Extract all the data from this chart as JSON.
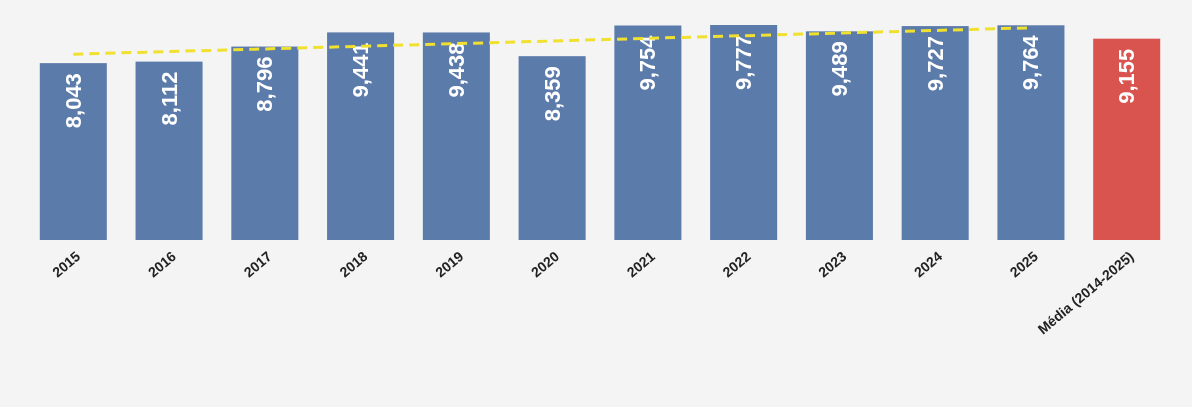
{
  "chart_data": {
    "type": "bar",
    "categories": [
      "2015",
      "2016",
      "2017",
      "2018",
      "2019",
      "2020",
      "2021",
      "2022",
      "2023",
      "2024",
      "2025",
      "Média (2014-2025)"
    ],
    "values": [
      8043,
      8112,
      8796,
      9441,
      9438,
      8359,
      9754,
      9777,
      9489,
      9727,
      9764,
      9155
    ],
    "value_labels": [
      "8,043",
      "8,112",
      "8,796",
      "9,441",
      "9,438",
      "8,359",
      "9,754",
      "9,777",
      "9,489",
      "9,727",
      "9,764",
      "9,155"
    ],
    "colors": [
      "#5b7bab",
      "#5b7bab",
      "#5b7bab",
      "#5b7bab",
      "#5b7bab",
      "#5b7bab",
      "#5b7bab",
      "#5b7bab",
      "#5b7bab",
      "#5b7bab",
      "#5b7bab",
      "#d9534f"
    ],
    "series": [
      {
        "type": "line",
        "values": [
          8450,
          8570,
          8690,
          8810,
          8930,
          9050,
          9170,
          9290,
          9410,
          9530,
          9650,
          null
        ],
        "color": "#f0e030",
        "line_style": "dashed"
      }
    ]
  }
}
